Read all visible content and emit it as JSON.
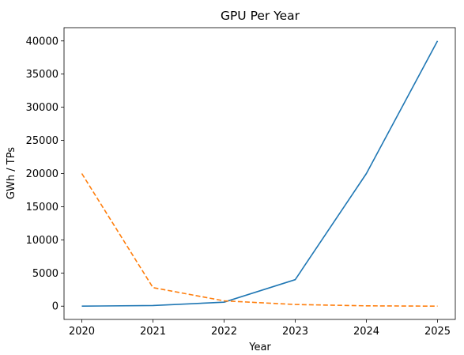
{
  "chart_data": {
    "type": "line",
    "title": "GPU Per Year",
    "xlabel": "Year",
    "ylabel": "GWh / TPs",
    "x": [
      2020,
      2021,
      2022,
      2023,
      2024,
      2025
    ],
    "xlim": [
      2019.75,
      2025.25
    ],
    "ylim": [
      -2000,
      42000
    ],
    "yticks": [
      0,
      5000,
      10000,
      15000,
      20000,
      25000,
      30000,
      35000,
      40000
    ],
    "grid": false,
    "series": [
      {
        "values": [
          0,
          100,
          600,
          4000,
          20000,
          40000
        ],
        "color": "#1f77b4",
        "style": "solid"
      },
      {
        "values": [
          20000,
          2800,
          800,
          250,
          50,
          0
        ],
        "color": "#ff7f0e",
        "style": "dashed"
      }
    ]
  }
}
